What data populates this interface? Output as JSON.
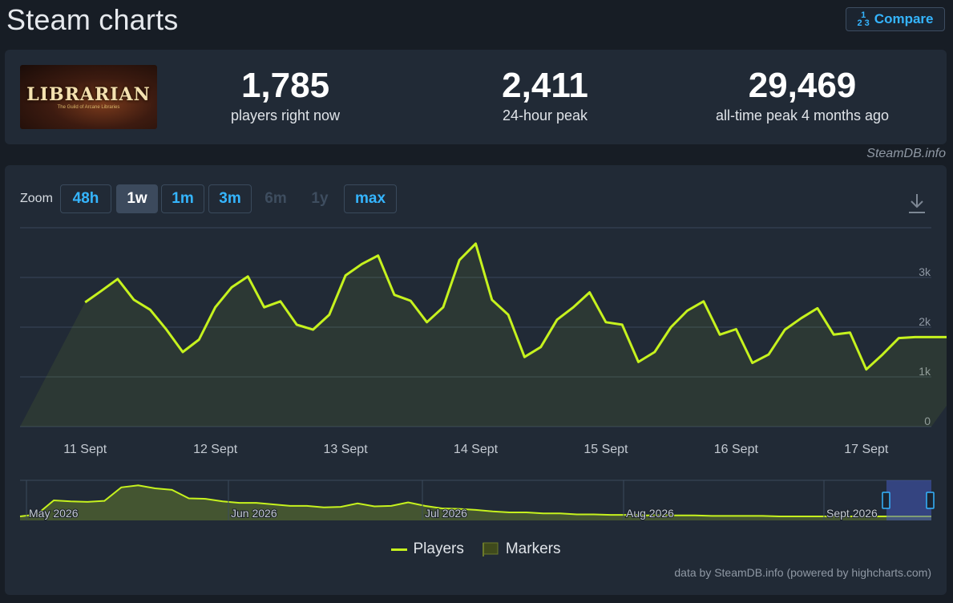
{
  "header": {
    "title": "Steam charts",
    "compare_label": "Compare",
    "compare_icon": "fraction-icon"
  },
  "game": {
    "logo_text": "LIBRARIAN",
    "logo_subtitle": "The Guild of Arcane Libraries"
  },
  "stats": [
    {
      "value": "1,785",
      "label": "players right now"
    },
    {
      "value": "2,411",
      "label": "24-hour peak"
    },
    {
      "value": "29,469",
      "label": "all-time peak 4 months ago"
    }
  ],
  "credit_top": "SteamDB.info",
  "zoom": {
    "label": "Zoom",
    "buttons": [
      {
        "label": "48h",
        "state": "enabled"
      },
      {
        "label": "1w",
        "state": "active"
      },
      {
        "label": "1m",
        "state": "enabled"
      },
      {
        "label": "3m",
        "state": "enabled"
      },
      {
        "label": "6m",
        "state": "disabled"
      },
      {
        "label": "1y",
        "state": "disabled"
      },
      {
        "label": "max",
        "state": "enabled"
      }
    ]
  },
  "download_icon": "download-icon",
  "colors": {
    "accent": "#35b5ff",
    "series": "#c6f21e",
    "panel": "#212a36",
    "background": "#171d25"
  },
  "chart_data": {
    "type": "line",
    "series": [
      {
        "name": "Players",
        "x": [
          0,
          0.125,
          0.25,
          0.375,
          0.5,
          0.625,
          0.75,
          0.875,
          1,
          1.125,
          1.25,
          1.375,
          1.5,
          1.625,
          1.75,
          1.875,
          2,
          2.125,
          2.25,
          2.375,
          2.5,
          2.625,
          2.75,
          2.875,
          3,
          3.125,
          3.25,
          3.375,
          3.5,
          3.625,
          3.75,
          3.875,
          4,
          4.125,
          4.25,
          4.375,
          4.5,
          4.625,
          4.75,
          4.875,
          5,
          5.125,
          5.25,
          5.375,
          5.5,
          5.625,
          5.75,
          5.875,
          6,
          6.125,
          6.25,
          6.375,
          6.5,
          6.625,
          6.75,
          6.875,
          7
        ],
        "y": [
          2500,
          2730,
          2970,
          2550,
          2350,
          1950,
          1500,
          1750,
          2400,
          2800,
          3020,
          2400,
          2520,
          2050,
          1950,
          2250,
          3040,
          3270,
          3440,
          2650,
          2530,
          2100,
          2400,
          3350,
          3680,
          2550,
          2250,
          1400,
          1600,
          2150,
          2400,
          2700,
          2100,
          2050,
          1300,
          1500,
          2000,
          2330,
          2520,
          1850,
          1960,
          1280,
          1450,
          1950,
          2180,
          2380,
          1850,
          1890,
          1150,
          1450,
          1780,
          1800,
          1800,
          1800,
          1800,
          1800,
          1800
        ]
      }
    ],
    "x_tick_labels": [
      "11 Sept",
      "12 Sept",
      "13 Sept",
      "14 Sept",
      "15 Sept",
      "16 Sept",
      "17 Sept"
    ],
    "y_tick_labels": [
      "0",
      "1k",
      "2k",
      "3k"
    ],
    "ylim": [
      0,
      4000
    ],
    "grid": true,
    "navigator": {
      "labels": [
        "May 2026",
        "Jun 2026",
        "Jul 2026",
        "Aug 2026",
        "Sept 2026"
      ],
      "values": [
        400,
        600,
        2000,
        1900,
        1850,
        1950,
        3300,
        3500,
        3200,
        3050,
        2200,
        2150,
        1900,
        1750,
        1750,
        1600,
        1450,
        1450,
        1300,
        1350,
        1700,
        1400,
        1450,
        1800,
        1450,
        1200,
        1150,
        1050,
        900,
        800,
        800,
        700,
        700,
        600,
        600,
        550,
        550,
        500,
        500,
        500,
        500,
        450,
        450,
        450,
        450,
        400,
        400,
        400,
        400,
        400,
        400,
        400,
        400,
        400,
        400
      ]
    },
    "legend": [
      {
        "label": "Players",
        "kind": "line"
      },
      {
        "label": "Markers",
        "kind": "flag"
      }
    ],
    "legend_position": "bottom-center"
  },
  "credit_bottom": "data by SteamDB.info (powered by highcharts.com)"
}
